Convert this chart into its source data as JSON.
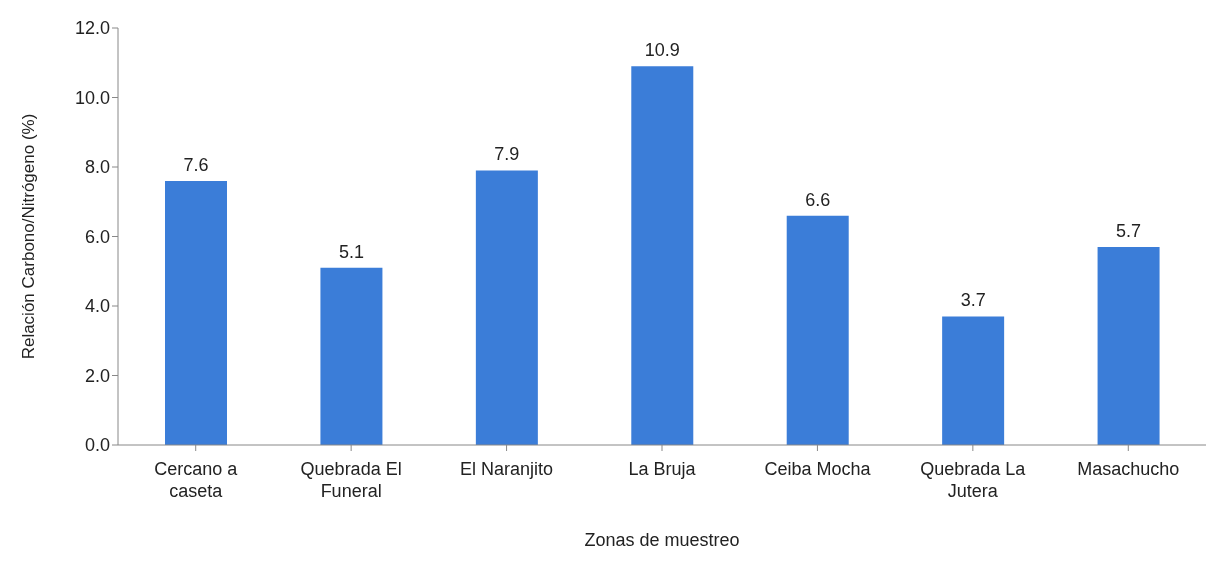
{
  "chart_data": {
    "type": "bar",
    "xlabel": "Zonas de muestreo",
    "ylabel": "Relación Carbono/Nitrógeno (%)",
    "categories": [
      "Cercano a caseta",
      "Quebrada El Funeral",
      "El Naranjito",
      "La Bruja",
      "Ceiba Mocha",
      "Quebrada La Jutera",
      "Masachucho"
    ],
    "values": [
      7.6,
      5.1,
      7.9,
      10.9,
      6.6,
      3.7,
      5.7
    ],
    "color": "#3b7dd8",
    "ylim": [
      0,
      12
    ],
    "yticks": [
      {
        "value": 0,
        "label": "0.0"
      },
      {
        "value": 2,
        "label": "2.0"
      },
      {
        "value": 4,
        "label": "4.0"
      },
      {
        "value": 6,
        "label": "6.0"
      },
      {
        "value": 8,
        "label": "8.0"
      },
      {
        "value": 10,
        "label": "10.0"
      },
      {
        "value": 12,
        "label": "12.0"
      }
    ],
    "grid": false,
    "data_labels": true
  }
}
